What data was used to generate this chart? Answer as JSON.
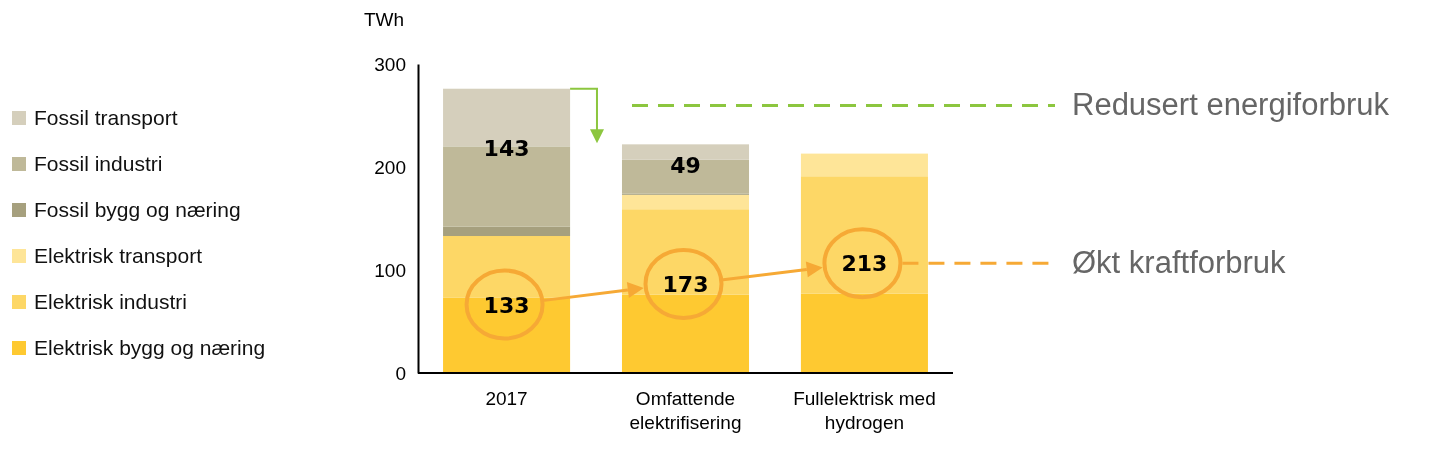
{
  "chart_data": {
    "type": "bar",
    "stacked": true,
    "ylabel": "TWh",
    "categories": [
      "2017",
      "Omfattende elektrifisering",
      "Fullelektrisk med hydrogen"
    ],
    "series": [
      {
        "name": "Elektrisk bygg og næring",
        "color": "#fec931",
        "values": [
          73,
          76,
          77
        ]
      },
      {
        "name": "Elektrisk industri",
        "color": "#fdd766",
        "values": [
          60,
          83,
          114
        ]
      },
      {
        "name": "Elektrisk transport",
        "color": "#fee598",
        "values": [
          0,
          14,
          22
        ]
      },
      {
        "name": "Fossil bygg og næring",
        "color": "#a6a07e",
        "values": [
          9,
          1,
          0
        ]
      },
      {
        "name": "Fossil industri",
        "color": "#bfb999",
        "values": [
          78,
          33,
          0
        ]
      },
      {
        "name": "Fossil transport",
        "color": "#d5cfbc",
        "values": [
          56,
          15,
          0
        ]
      }
    ],
    "ylim": [
      0,
      300
    ],
    "yticks": [
      0,
      100,
      200,
      300
    ],
    "grid": false,
    "legend": "left",
    "annotations": [
      "143",
      "49",
      "133",
      "173",
      "213",
      "Redusert energiforbruk",
      "Økt kraftforbruk"
    ]
  }
}
